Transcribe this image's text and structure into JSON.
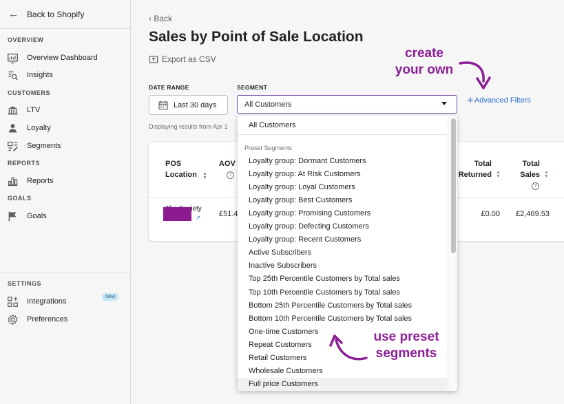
{
  "sidebar": {
    "back_label": "Back to Shopify",
    "sections": {
      "overview": "OVERVIEW",
      "customers": "CUSTOMERS",
      "reports": "REPORTS",
      "goals": "GOALS",
      "settings": "SETTINGS"
    },
    "items": [
      {
        "label": "Overview Dashboard",
        "icon": "dashboard-icon"
      },
      {
        "label": "Insights",
        "icon": "insights-icon"
      },
      {
        "label": "LTV",
        "icon": "bank-icon"
      },
      {
        "label": "Loyalty",
        "icon": "person-icon"
      },
      {
        "label": "Segments",
        "icon": "segments-icon"
      },
      {
        "label": "Reports",
        "icon": "bar-chart-icon"
      },
      {
        "label": "Goals",
        "icon": "flag-icon"
      },
      {
        "label": "Integrations",
        "icon": "apps-icon"
      },
      {
        "label": "Preferences",
        "icon": "gear-icon"
      }
    ],
    "new_badge": "New"
  },
  "main": {
    "back_label": "Back",
    "title": "Sales by Point of Sale Location",
    "export_label": "Export as CSV",
    "date_range_label": "DATE RANGE",
    "date_range_value": "Last 30 days",
    "segment_label": "SEGMENT",
    "segment_value": "All Customers",
    "advanced_filters": "Advanced Filters",
    "displaying": "Displaying results from Apr 1"
  },
  "table": {
    "headers": {
      "pos_location": "POS Location",
      "aov": "AOV",
      "total_returned": "Total Returned",
      "total_sales": "Total Sales"
    },
    "row": {
      "location": "The Society",
      "aov": "£51.4",
      "total_returned": "£0.00",
      "total_sales": "£2,469.53"
    }
  },
  "dropdown": {
    "first_option": "All Customers",
    "group_label": "Preset Segments",
    "options": [
      "Loyalty group: Dormant Customers",
      "Loyalty group: At Risk Customers",
      "Loyalty group: Loyal Customers",
      "Loyalty group: Best Customers",
      "Loyalty group: Promising Customers",
      "Loyalty group: Defecting Customers",
      "Loyalty group: Recent Customers",
      "Active Subscribers",
      "Inactive Subscribers",
      "Top 25th Percentile Customers by Total sales",
      "Top 10th Percentile Customers by Total sales",
      "Bottom 25th Percentile Customers by Total sales",
      "Bottom 10th Percentile Customers by Total sales",
      "One-time Customers",
      "Repeat Customers",
      "Retail Customers",
      "Wholesale Customers",
      "Full price Customers"
    ]
  },
  "annotations": {
    "create_line1": "create",
    "create_line2": "your own",
    "preset_line1": "use preset",
    "preset_line2": "segments"
  },
  "colors": {
    "annotation": "#8b1f96",
    "link": "#2c6ecb",
    "select_border": "#6f44a1",
    "redaction": "#8c1b8f"
  }
}
